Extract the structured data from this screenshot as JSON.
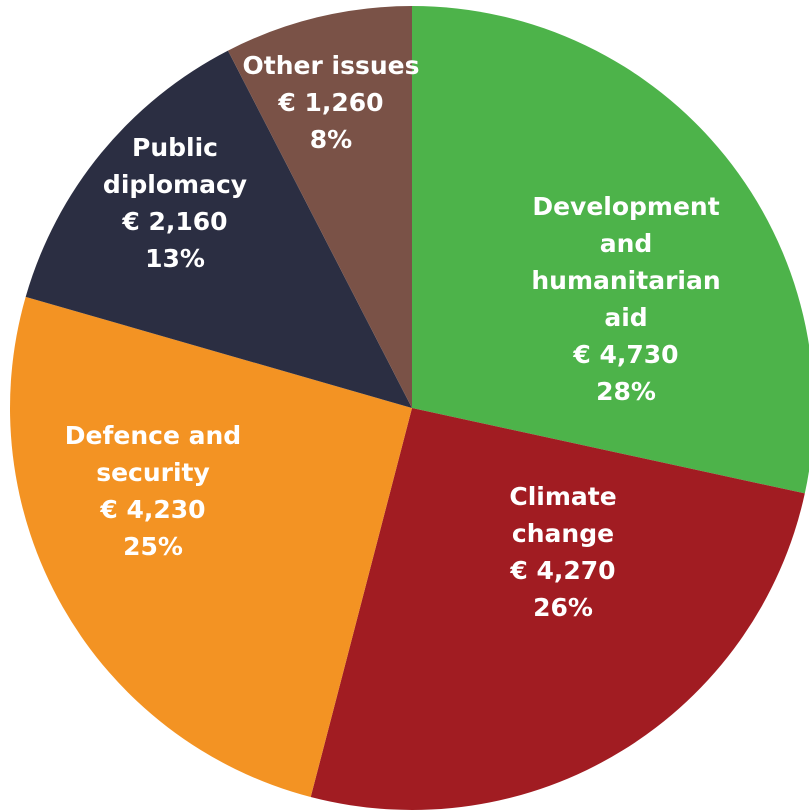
{
  "chart_data": {
    "type": "pie",
    "currency": "€",
    "start_angle_deg": 0,
    "direction": "clockwise",
    "slices": [
      {
        "name": "Development and humanitarian aid",
        "label_lines": [
          "Development",
          "and",
          "humanitarian",
          "aid"
        ],
        "value": 4730,
        "value_label": "€ 4,730",
        "percent_label": "28%",
        "color": "#4db34a"
      },
      {
        "name": "Climate change",
        "label_lines": [
          "Climate",
          "change"
        ],
        "value": 4270,
        "value_label": "€ 4,270",
        "percent_label": "26%",
        "color": "#a11c22"
      },
      {
        "name": "Defence and security",
        "label_lines": [
          "Defence and",
          "security"
        ],
        "value": 4230,
        "value_label": "€ 4,230",
        "percent_label": "25%",
        "color": "#f39323"
      },
      {
        "name": "Public diplomacy",
        "label_lines": [
          "Public",
          "diplomacy"
        ],
        "value": 2160,
        "value_label": "€ 2,160",
        "percent_label": "13%",
        "color": "#2b2e42"
      },
      {
        "name": "Other issues",
        "label_lines": [
          "Other issues"
        ],
        "value": 1260,
        "value_label": "€ 1,260",
        "percent_label": "8%",
        "color": "#7a5247"
      }
    ]
  }
}
